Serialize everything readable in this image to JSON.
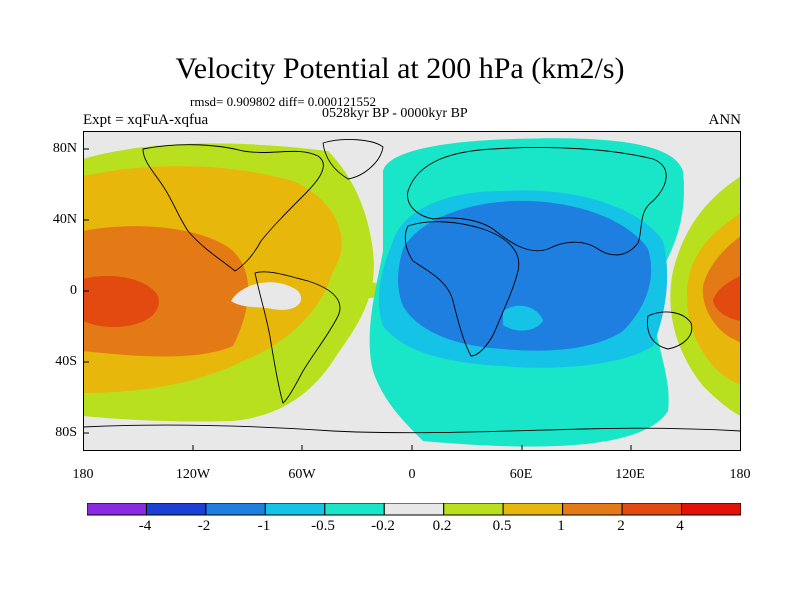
{
  "figure": {
    "title": "Velocity Potential at 200 hPa (km2/s)",
    "stats": "rmsd= 0.909802 diff= 0.000121552",
    "period": "0528kyr BP - 0000kyr BP",
    "experiment": "Expt = xqFuA-xqfua",
    "season": "ANN"
  },
  "axes": {
    "y_ticks": [
      "80N",
      "40N",
      "0",
      "40S",
      "80S"
    ],
    "x_ticks": [
      "180",
      "120W",
      "60W",
      "0",
      "60E",
      "120E",
      "180"
    ]
  },
  "colorbar": {
    "labels": [
      "-4",
      "-2",
      "-1",
      "-0.5",
      "-0.2",
      "0.2",
      "0.5",
      "1",
      "2",
      "4"
    ],
    "colors": [
      "#8a2be2",
      "#1c3fd6",
      "#1e7fe0",
      "#15c3e6",
      "#19e6c8",
      "#e8e8e8",
      "#b9e01f",
      "#e7b70c",
      "#e47a15",
      "#e24a10",
      "#e31208"
    ]
  },
  "map_colors": {
    "neg_low": "#19e6c8",
    "neg_mid": "#15c3e6",
    "neg_high": "#1e7fe0",
    "neutral": "#e8e8e8",
    "pos_low": "#b9e01f",
    "pos_mid": "#e7b70c",
    "pos_high": "#e47a15",
    "pos_max": "#e24a10"
  }
}
